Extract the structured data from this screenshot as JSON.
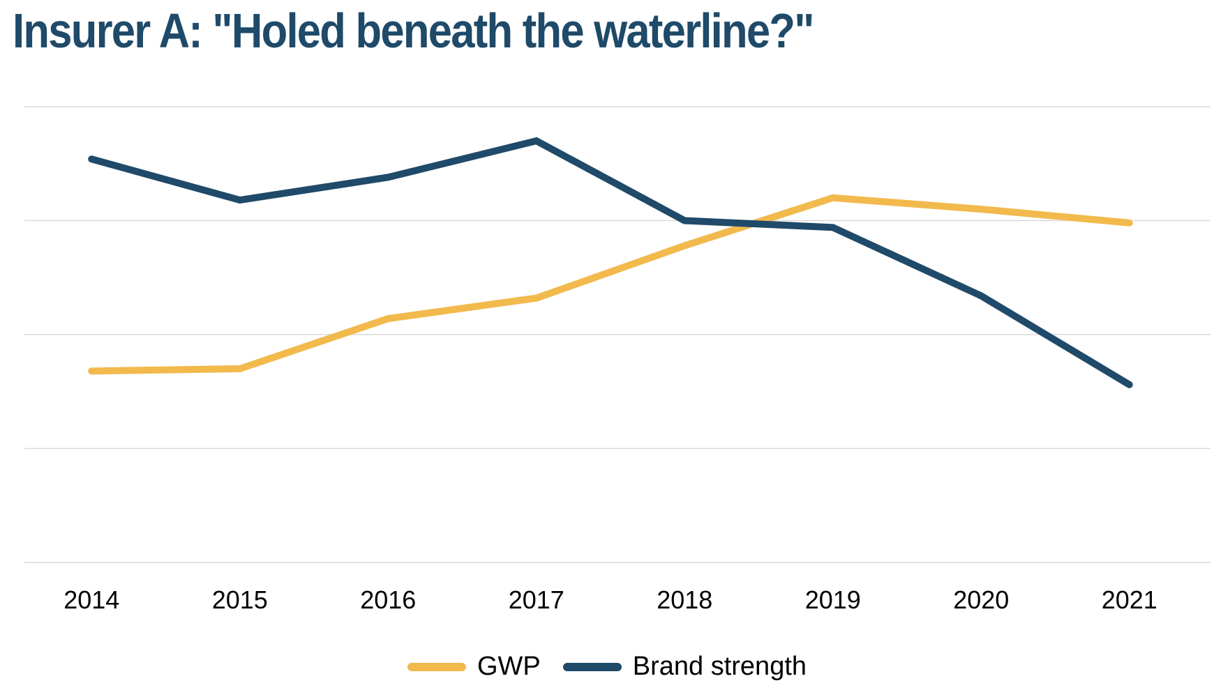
{
  "title": "Insurer A: \"Holed beneath the waterline?\"",
  "colors": {
    "title": "#1f4a69",
    "gwp": "#f2b94c",
    "brand_strength": "#1f4a69",
    "gridline": "#d9d9d9",
    "text": "#000000"
  },
  "chart_data": {
    "type": "line",
    "title": "Insurer A: \"Holed beneath the waterline?\"",
    "xlabel": "",
    "ylabel": "",
    "categories": [
      "2014",
      "2015",
      "2016",
      "2017",
      "2018",
      "2019",
      "2020",
      "2021"
    ],
    "ylim": [
      0,
      100
    ],
    "y_ticks": [
      0,
      25,
      50,
      75,
      100
    ],
    "y_tick_labels_visible": false,
    "grid": true,
    "legend_position": "bottom-center",
    "series": [
      {
        "name": "GWP",
        "color": "#f2b94c",
        "values": [
          42,
          42.5,
          53.5,
          58,
          69.5,
          80,
          77.5,
          74.5
        ]
      },
      {
        "name": "Brand strength",
        "color": "#1f4a69",
        "values": [
          88.5,
          79.5,
          84.5,
          92.5,
          75,
          73.5,
          58.5,
          39
        ]
      }
    ]
  },
  "legend": [
    {
      "label": "GWP",
      "color": "#f2b94c"
    },
    {
      "label": "Brand strength",
      "color": "#1f4a69"
    }
  ]
}
